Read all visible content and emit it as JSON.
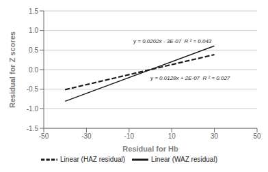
{
  "chart_data": {
    "type": "line",
    "xlabel": "Residual for Hb",
    "ylabel": "Residual for Z scores",
    "x": [
      -40,
      30
    ],
    "series": [
      {
        "name": "Linear (WAZ residual)",
        "color": "#1a1a1a",
        "line_style": "solid",
        "values": [
          -0.8080003,
          0.6059997
        ]
      },
      {
        "name": "Linear (HAZ residual)",
        "color": "#1a1a1a",
        "line_style": "dashed",
        "values": [
          -0.5119998,
          0.3840002
        ]
      }
    ],
    "annotations": [
      {
        "text": "y = 0.0202x - 3E-07  R ² = 0.043",
        "x": -8,
        "y": 0.73
      },
      {
        "text": "y = 0.0128x + 2E-07  R ² = 0.027",
        "x": 0,
        "y": -0.22
      }
    ],
    "xlim": [
      -50,
      50
    ],
    "ylim": [
      -1.5,
      1.5
    ],
    "xticks": [
      -50,
      -30,
      -10,
      10,
      30,
      50
    ],
    "yticks": [
      {
        "value": -1.5,
        "label": "-1.5"
      },
      {
        "value": -1,
        "label": "-1.0"
      },
      {
        "value": -0.5,
        "label": "-0.5"
      },
      {
        "value": 0,
        "label": "0.0"
      },
      {
        "value": 0.5,
        "label": "0.5"
      },
      {
        "value": 1,
        "label": "1.0"
      },
      {
        "value": 1.5,
        "label": "1.5"
      }
    ],
    "grid": "y",
    "legend": "bottom"
  }
}
